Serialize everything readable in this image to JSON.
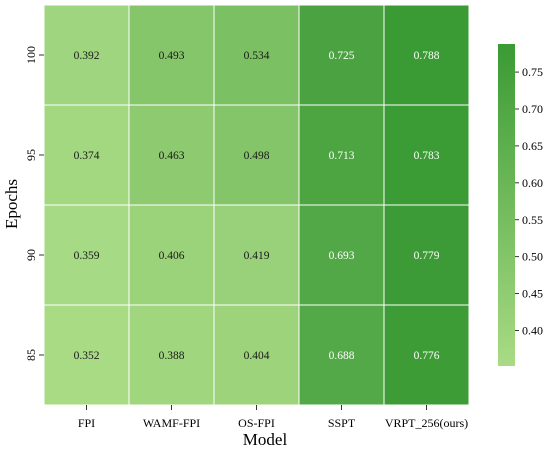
{
  "chart_data": {
    "type": "heatmap",
    "title": "",
    "xlabel": "Model",
    "ylabel": "Epochs",
    "x_categories": [
      "FPI",
      "WAMF-FPI",
      "OS-FPI",
      "SSPT",
      "VRPT_256(ours)"
    ],
    "y_categories": [
      "100",
      "95",
      "90",
      "85"
    ],
    "values": [
      [
        0.392,
        0.493,
        0.534,
        0.725,
        0.788
      ],
      [
        0.374,
        0.463,
        0.498,
        0.713,
        0.783
      ],
      [
        0.359,
        0.406,
        0.419,
        0.693,
        0.779
      ],
      [
        0.352,
        0.388,
        0.404,
        0.688,
        0.776
      ]
    ],
    "value_labels": [
      [
        "0.392",
        "0.493",
        "0.534",
        "0.725",
        "0.788"
      ],
      [
        "0.374",
        "0.463",
        "0.498",
        "0.713",
        "0.783"
      ],
      [
        "0.359",
        "0.406",
        "0.419",
        "0.693",
        "0.779"
      ],
      [
        "0.352",
        "0.388",
        "0.404",
        "0.688",
        "0.776"
      ]
    ],
    "colorbar": {
      "range": [
        0.352,
        0.788
      ],
      "ticks": [
        "0.40",
        "0.45",
        "0.50",
        "0.55",
        "0.60",
        "0.65",
        "0.70",
        "0.75"
      ],
      "color_low": "#a9db85",
      "color_high": "#3a9a34"
    },
    "grid": false
  }
}
